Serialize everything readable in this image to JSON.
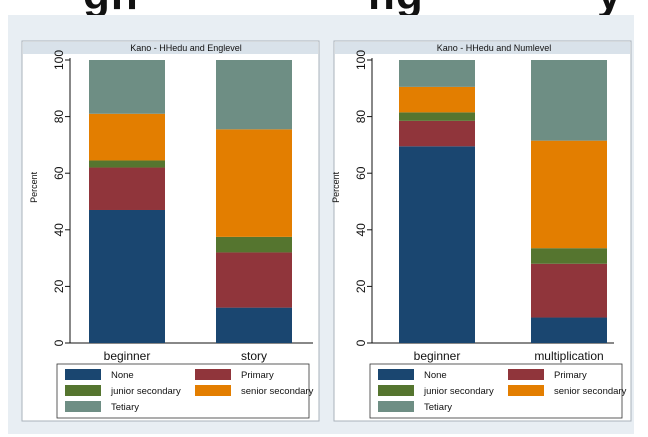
{
  "heading_fragment": {
    "left": "gh",
    "middle": "ng",
    "right": "y"
  },
  "chart_data": [
    {
      "type": "bar",
      "stacked": true,
      "title": "Kano - HHedu and Englevel",
      "ylabel": "Percent",
      "xlabel": "",
      "ylim": [
        0,
        100
      ],
      "yticks": [
        0,
        20,
        40,
        60,
        80,
        100
      ],
      "categories": [
        "beginner",
        "story"
      ],
      "series": [
        {
          "name": "None",
          "color": "#1a4670",
          "values": [
            47,
            12.5
          ]
        },
        {
          "name": "Primary",
          "color": "#90353b",
          "values": [
            15,
            19.5
          ]
        },
        {
          "name": "junior secondary",
          "color": "#55752f",
          "values": [
            2.5,
            5.5
          ]
        },
        {
          "name": "senior secondary",
          "color": "#e37e00",
          "values": [
            16.5,
            38
          ]
        },
        {
          "name": "Tetiary",
          "color": "#6e8e84",
          "values": [
            19,
            24.5
          ]
        }
      ],
      "legend_position": "bottom"
    },
    {
      "type": "bar",
      "stacked": true,
      "title": "Kano - HHedu and Numlevel",
      "ylabel": "Percent",
      "xlabel": "",
      "ylim": [
        0,
        100
      ],
      "yticks": [
        0,
        20,
        40,
        60,
        80,
        100
      ],
      "categories": [
        "beginner",
        "multiplication"
      ],
      "series": [
        {
          "name": "None",
          "color": "#1a4670",
          "values": [
            69.5,
            9
          ]
        },
        {
          "name": "Primary",
          "color": "#90353b",
          "values": [
            9,
            19
          ]
        },
        {
          "name": "junior secondary",
          "color": "#55752f",
          "values": [
            3,
            5.5
          ]
        },
        {
          "name": "senior secondary",
          "color": "#e37e00",
          "values": [
            9,
            38
          ]
        },
        {
          "name": "Tetiary",
          "color": "#6e8e84",
          "values": [
            9.5,
            28.5
          ]
        }
      ],
      "legend_position": "bottom"
    }
  ]
}
